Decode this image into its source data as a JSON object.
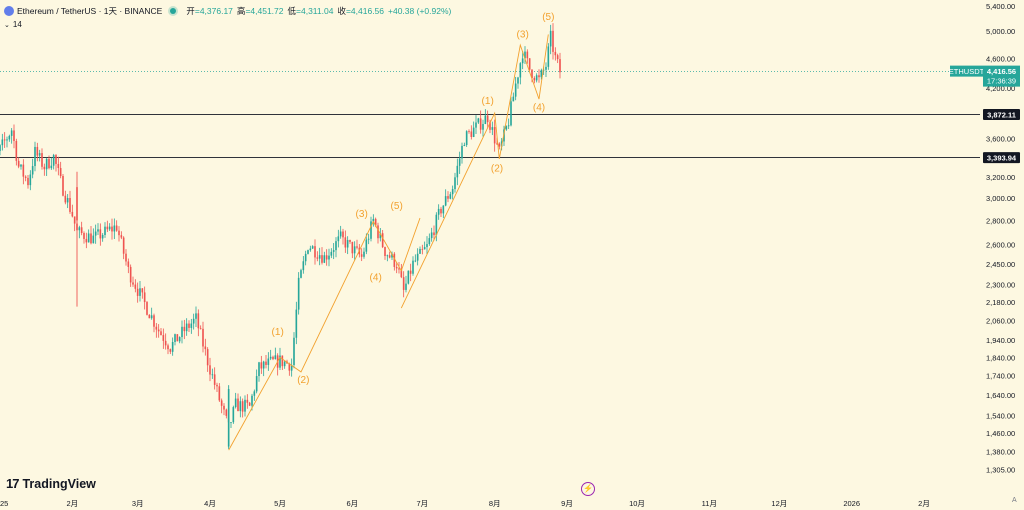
{
  "header": {
    "title": "Ethereum / TetherUS · 1天 · BINANCE",
    "open_label": "开",
    "open_value": "=4,376.17",
    "high_label": "高",
    "high_value": "=4,451.72",
    "low_label": "低",
    "low_value": "=4,311.04",
    "close_label": "收",
    "close_value": "=4,416.56",
    "change": "+40.38 (+0.92%)"
  },
  "indicator": {
    "value": "14"
  },
  "brand": {
    "name": "TradingView"
  },
  "events": {
    "icon": "lightning-icon",
    "glyph": "⚡"
  },
  "axis_corner": "A",
  "colors": {
    "up": "#26a69a",
    "down": "#ef5350",
    "wave": "#f2a12e",
    "background": "#fdf8e1"
  },
  "chart_data": {
    "type": "candlestick",
    "symbol": "ETHUSDT",
    "y_scale": "log",
    "ylim": [
      1260,
      5400
    ],
    "xlim": [
      "2025-01-01",
      "2026-02-25"
    ],
    "y_ticks": [
      5400,
      5000,
      4600,
      4200,
      3600,
      3200,
      3000,
      2800,
      2600,
      2450,
      2300,
      2180,
      2060,
      1940,
      1840,
      1740,
      1640,
      1540,
      1460,
      1380,
      1305
    ],
    "y_tick_labels": [
      "5,400.00",
      "5,000.00",
      "4,600.00",
      "4,200.00",
      "3,600.00",
      "3,200.00",
      "3,000.00",
      "2,800.00",
      "2,600.00",
      "2,450.00",
      "2,300.00",
      "2,180.00",
      "2,060.00",
      "1,940.00",
      "1,840.00",
      "1,740.00",
      "1,640.00",
      "1,540.00",
      "1,460.00",
      "1,380.00",
      "1,305.00"
    ],
    "x_ticks": [
      {
        "date": "2025-01-01",
        "label": "2025"
      },
      {
        "date": "2025-02-01",
        "label": "2月"
      },
      {
        "date": "2025-03-01",
        "label": "3月"
      },
      {
        "date": "2025-04-01",
        "label": "4月"
      },
      {
        "date": "2025-05-01",
        "label": "5月"
      },
      {
        "date": "2025-06-01",
        "label": "6月"
      },
      {
        "date": "2025-07-01",
        "label": "7月"
      },
      {
        "date": "2025-08-01",
        "label": "8月"
      },
      {
        "date": "2025-09-01",
        "label": "9月"
      },
      {
        "date": "2025-10-01",
        "label": "10月"
      },
      {
        "date": "2025-11-01",
        "label": "11月"
      },
      {
        "date": "2025-12-01",
        "label": "12月"
      },
      {
        "date": "2026-01-01",
        "label": "2026"
      },
      {
        "date": "2026-02-01",
        "label": "2月"
      }
    ],
    "price_path": [
      [
        "2024-12-24",
        3480
      ],
      [
        "2024-12-29",
        3350
      ],
      [
        "2025-01-06",
        3700
      ],
      [
        "2025-01-09",
        3300
      ],
      [
        "2025-01-13",
        3150
      ],
      [
        "2025-01-16",
        3450
      ],
      [
        "2025-01-20",
        3300
      ],
      [
        "2025-01-24",
        3400
      ],
      [
        "2025-01-27",
        3150
      ],
      [
        "2025-02-01",
        2850
      ],
      [
        "2025-02-03",
        2700
      ],
      [
        "2025-02-10",
        2650
      ],
      [
        "2025-02-20",
        2750
      ],
      [
        "2025-02-25",
        2400
      ],
      [
        "2025-03-03",
        2200
      ],
      [
        "2025-03-10",
        2000
      ],
      [
        "2025-03-15",
        1900
      ],
      [
        "2025-03-21",
        2000
      ],
      [
        "2025-03-26",
        2070
      ],
      [
        "2025-03-31",
        1820
      ],
      [
        "2025-04-06",
        1580
      ],
      [
        "2025-04-09",
        1480
      ],
      [
        "2025-04-12",
        1590
      ],
      [
        "2025-04-18",
        1580
      ],
      [
        "2025-04-22",
        1780
      ],
      [
        "2025-04-27",
        1810
      ],
      [
        "2025-05-01",
        1820
      ],
      [
        "2025-05-06",
        1800
      ],
      [
        "2025-05-09",
        2300
      ],
      [
        "2025-05-13",
        2600
      ],
      [
        "2025-05-20",
        2500
      ],
      [
        "2025-05-27",
        2650
      ],
      [
        "2025-06-02",
        2550
      ],
      [
        "2025-06-05",
        2500
      ],
      [
        "2025-06-10",
        2800
      ],
      [
        "2025-06-15",
        2550
      ],
      [
        "2025-06-20",
        2450
      ],
      [
        "2025-06-23",
        2250
      ],
      [
        "2025-06-27",
        2450
      ],
      [
        "2025-07-03",
        2580
      ],
      [
        "2025-07-09",
        2900
      ],
      [
        "2025-07-14",
        3100
      ],
      [
        "2025-07-19",
        3600
      ],
      [
        "2025-07-25",
        3750
      ],
      [
        "2025-07-29",
        3850
      ],
      [
        "2025-08-01",
        3600
      ],
      [
        "2025-08-03",
        3450
      ],
      [
        "2025-08-07",
        3800
      ],
      [
        "2025-08-10",
        4250
      ],
      [
        "2025-08-13",
        4700
      ],
      [
        "2025-08-16",
        4450
      ],
      [
        "2025-08-20",
        4300
      ],
      [
        "2025-08-23",
        4500
      ],
      [
        "2025-08-25",
        4900
      ],
      [
        "2025-08-27",
        4600
      ],
      [
        "2025-08-29",
        4420
      ]
    ],
    "highlight_bars": [
      {
        "date": "2025-02-03",
        "open": 3100,
        "close": 2800,
        "high": 3250,
        "low": 2150,
        "dir": "down"
      },
      {
        "date": "2025-04-09",
        "open": 1400,
        "close": 1670,
        "high": 1690,
        "low": 1390,
        "dir": "up"
      }
    ],
    "horizontal_levels": [
      {
        "value": 3872.11,
        "label": "3,872.11"
      },
      {
        "value": 3393.94,
        "label": "3,393.94"
      }
    ],
    "current_price": {
      "label": "ETHUSDT",
      "value": "4,416.56",
      "countdown": "17:36:39",
      "price": 4416.56
    },
    "elliott_waves": [
      {
        "name": "cycle-1",
        "points": [
          [
            "2025-04-09",
            1385
          ],
          [
            "2025-05-01",
            1840
          ],
          [
            "2025-05-10",
            1760
          ],
          [
            "2025-06-10",
            2790
          ],
          [
            "2025-06-22",
            2400
          ],
          [
            "2025-06-30",
            2820
          ]
        ]
      },
      {
        "name": "cycle-2",
        "points": [
          [
            "2025-06-22",
            2140
          ],
          [
            "2025-08-01",
            3890
          ],
          [
            "2025-08-03",
            3380
          ],
          [
            "2025-08-12",
            4790
          ],
          [
            "2025-08-20",
            4060
          ],
          [
            "2025-08-24",
            4950
          ]
        ]
      }
    ],
    "wave_labels": [
      {
        "text": "(1)",
        "date": "2025-04-30",
        "price": 1970
      },
      {
        "text": "(2)",
        "date": "2025-05-11",
        "price": 1700
      },
      {
        "text": "(3)",
        "date": "2025-06-05",
        "price": 2830
      },
      {
        "text": "(4)",
        "date": "2025-06-11",
        "price": 2330
      },
      {
        "text": "(5)",
        "date": "2025-06-20",
        "price": 2900
      },
      {
        "text": "(1)",
        "date": "2025-07-29",
        "price": 4000
      },
      {
        "text": "(2)",
        "date": "2025-08-02",
        "price": 3250
      },
      {
        "text": "(3)",
        "date": "2025-08-13",
        "price": 4900
      },
      {
        "text": "(4)",
        "date": "2025-08-20",
        "price": 3920
      },
      {
        "text": "(5)",
        "date": "2025-08-24",
        "price": 5170
      }
    ]
  }
}
